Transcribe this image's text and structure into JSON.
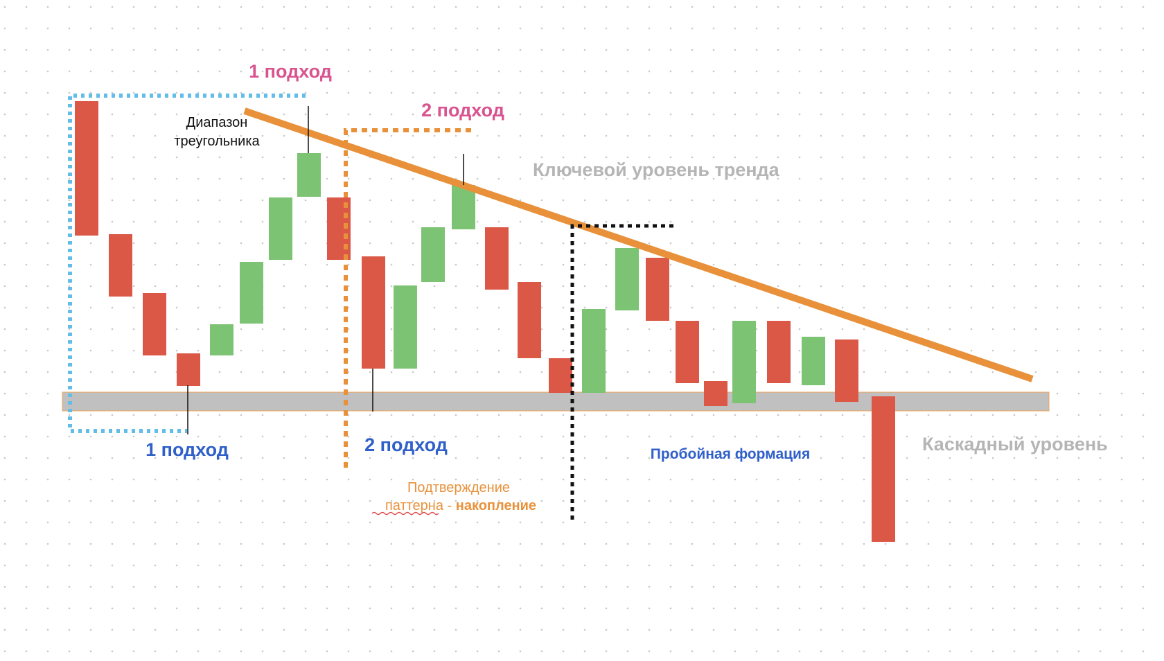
{
  "labels": {
    "approach1_top": "1 подход",
    "approach2_top": "2 подход",
    "range_line1": "Диапазон",
    "range_line2": "треугольника",
    "trend_level": "Ключевой уровень тренда",
    "approach1_bottom": "1 подход",
    "approach2_bottom": "2 подход",
    "confirm_line1": "Подтверждение",
    "confirm_word": "паттерна",
    "confirm_dash": " - ",
    "confirm_bold": "накопление",
    "breakout": "Пробойная формация",
    "cascade_level": "Каскадный уровень"
  },
  "colors": {
    "bear": "#db5847",
    "bull": "#7cc373",
    "trendline": "#e8913a",
    "support": "#c0c0c0",
    "support_border": "#eea45a",
    "grid_dot": "#c8c8c8",
    "pink_label": "#d9538f",
    "blue_label": "#2f5fc9",
    "grey_label": "#b5b5b5",
    "orange_label": "#e8913a",
    "sky_dotted": "#62bde8",
    "black": "#111111"
  }
}
